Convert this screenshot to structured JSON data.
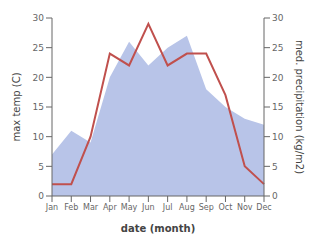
{
  "chart_data": {
    "type": "line",
    "categories": [
      "Jan",
      "Feb",
      "Mar",
      "Apr",
      "May",
      "Jun",
      "Jul",
      "Aug",
      "Sep",
      "Oct",
      "Nov",
      "Dec"
    ],
    "xlabel": "date (month)",
    "ylabel": "max temp (C)",
    "y2label": "med. precipitation (kg/m2)",
    "ylim": [
      0,
      30
    ],
    "yticks": [
      0,
      5,
      10,
      15,
      20,
      25,
      30
    ],
    "y2lim": [
      0,
      30
    ],
    "y2ticks": [
      0,
      5,
      10,
      15,
      20,
      25,
      30
    ],
    "grid": false,
    "series": [
      {
        "type": "area",
        "axis": "y2",
        "color": "#b8c4e8",
        "values": [
          7,
          11,
          9,
          20,
          26,
          22,
          25,
          27,
          18,
          15,
          13,
          12
        ]
      },
      {
        "type": "line",
        "color": "#c0504d",
        "values": [
          2,
          2,
          10,
          24,
          22,
          29,
          22,
          24,
          24,
          17,
          5,
          2
        ]
      }
    ]
  }
}
